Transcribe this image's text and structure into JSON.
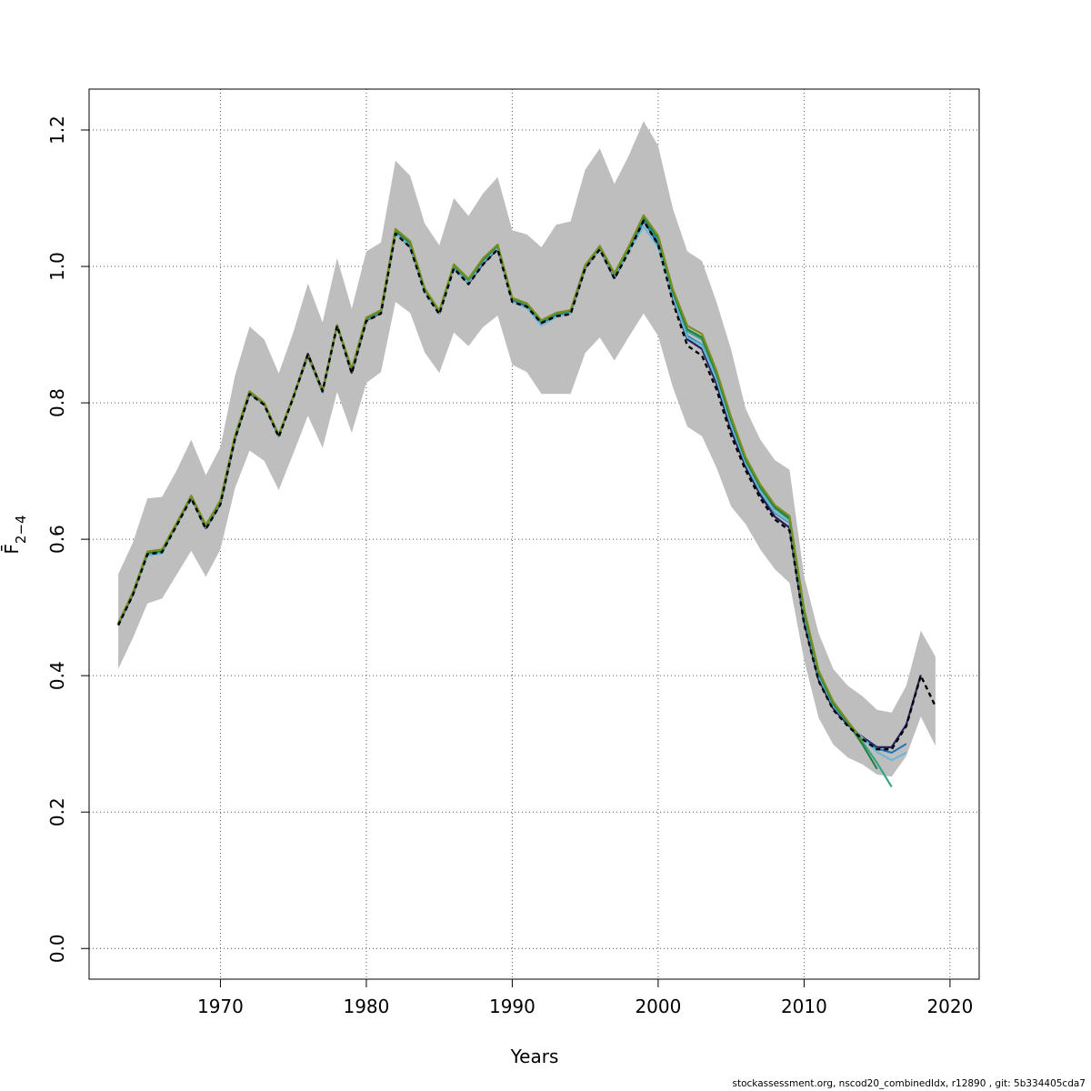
{
  "chart_data": {
    "type": "line",
    "xlabel": "Years",
    "ylabel": "F̄",
    "ylabel_sub": "2−4",
    "xlim": [
      1961,
      2022
    ],
    "ylim": [
      -0.045,
      1.26
    ],
    "x_ticks": [
      1970,
      1980,
      1990,
      2000,
      2010,
      2020
    ],
    "y_ticks": [
      0.0,
      0.2,
      0.4,
      0.6,
      0.8,
      1.0,
      1.2
    ],
    "grid": true,
    "band_color": "#bebebe",
    "band_x": [
      1963,
      1964,
      1965,
      1966,
      1967,
      1968,
      1969,
      1970,
      1971,
      1972,
      1973,
      1974,
      1975,
      1976,
      1977,
      1978,
      1979,
      1980,
      1981,
      1982,
      1983,
      1984,
      1985,
      1986,
      1987,
      1988,
      1989,
      1990,
      1991,
      1992,
      1993,
      1994,
      1995,
      1996,
      1997,
      1998,
      1999,
      2000,
      2001,
      2002,
      2003,
      2004,
      2005,
      2006,
      2007,
      2008,
      2009,
      2010,
      2011,
      2012,
      2013,
      2014,
      2015,
      2016,
      2017,
      2018,
      2019
    ],
    "band_upper": [
      0.549,
      0.595,
      0.66,
      0.662,
      0.701,
      0.746,
      0.694,
      0.735,
      0.84,
      0.912,
      0.893,
      0.843,
      0.904,
      0.975,
      0.918,
      1.012,
      0.938,
      1.022,
      1.035,
      1.155,
      1.133,
      1.063,
      1.031,
      1.1,
      1.074,
      1.107,
      1.131,
      1.053,
      1.047,
      1.028,
      1.061,
      1.066,
      1.142,
      1.173,
      1.121,
      1.163,
      1.213,
      1.177,
      1.085,
      1.022,
      1.008,
      0.948,
      0.878,
      0.791,
      0.746,
      0.716,
      0.702,
      0.546,
      0.462,
      0.41,
      0.385,
      0.37,
      0.35,
      0.346,
      0.385,
      0.466,
      0.428
    ],
    "band_lower": [
      0.41,
      0.455,
      0.506,
      0.513,
      0.548,
      0.583,
      0.545,
      0.585,
      0.675,
      0.73,
      0.715,
      0.672,
      0.726,
      0.781,
      0.734,
      0.816,
      0.756,
      0.829,
      0.845,
      0.948,
      0.932,
      0.874,
      0.844,
      0.903,
      0.883,
      0.911,
      0.928,
      0.856,
      0.845,
      0.813,
      0.813,
      0.813,
      0.873,
      0.896,
      0.862,
      0.897,
      0.931,
      0.898,
      0.823,
      0.765,
      0.751,
      0.705,
      0.648,
      0.622,
      0.585,
      0.556,
      0.536,
      0.423,
      0.338,
      0.299,
      0.28,
      0.27,
      0.255,
      0.252,
      0.282,
      0.34,
      0.297
    ],
    "series": [
      {
        "color": "#000000",
        "dash": "5,4",
        "width": 2.4,
        "x": [
          1963,
          1964,
          1965,
          1966,
          1967,
          1968,
          1969,
          1970,
          1971,
          1972,
          1973,
          1974,
          1975,
          1976,
          1977,
          1978,
          1979,
          1980,
          1981,
          1982,
          1983,
          1984,
          1985,
          1986,
          1987,
          1988,
          1989,
          1990,
          1991,
          1992,
          1993,
          1994,
          1995,
          1996,
          1997,
          1998,
          1999,
          2000,
          2001,
          2002,
          2003,
          2004,
          2005,
          2006,
          2007,
          2008,
          2009,
          2010,
          2011,
          2012,
          2013,
          2014,
          2015,
          2016,
          2017,
          2018,
          2019
        ],
        "y": [
          0.474,
          0.518,
          0.578,
          0.581,
          0.62,
          0.66,
          0.615,
          0.651,
          0.747,
          0.813,
          0.797,
          0.75,
          0.808,
          0.871,
          0.817,
          0.913,
          0.843,
          0.92,
          0.931,
          1.048,
          1.028,
          0.962,
          0.93,
          0.997,
          0.974,
          1.003,
          1.025,
          0.948,
          0.941,
          0.917,
          0.927,
          0.93,
          0.997,
          1.025,
          0.982,
          1.022,
          1.067,
          1.032,
          0.948,
          0.884,
          0.869,
          0.82,
          0.752,
          0.701,
          0.66,
          0.629,
          0.613,
          0.476,
          0.392,
          0.35,
          0.326,
          0.307,
          0.292,
          0.292,
          0.326,
          0.4,
          0.355
        ]
      },
      {
        "color": "#26215f",
        "dash": "",
        "width": 2.2,
        "x": [
          1963,
          1964,
          1965,
          1966,
          1967,
          1968,
          1969,
          1970,
          1971,
          1972,
          1973,
          1974,
          1975,
          1976,
          1977,
          1978,
          1979,
          1980,
          1981,
          1982,
          1983,
          1984,
          1985,
          1986,
          1987,
          1988,
          1989,
          1990,
          1991,
          1992,
          1993,
          1994,
          1995,
          1996,
          1997,
          1998,
          1999,
          2000,
          2001,
          2002,
          2003,
          2004,
          2005,
          2006,
          2007,
          2008,
          2009,
          2010,
          2011,
          2012,
          2013,
          2014,
          2015,
          2016,
          2017,
          2018
        ],
        "y": [
          0.475,
          0.519,
          0.579,
          0.582,
          0.621,
          0.661,
          0.616,
          0.652,
          0.748,
          0.814,
          0.798,
          0.751,
          0.809,
          0.872,
          0.818,
          0.914,
          0.844,
          0.921,
          0.932,
          1.049,
          1.029,
          0.963,
          0.931,
          0.998,
          0.975,
          1.004,
          1.026,
          0.949,
          0.942,
          0.918,
          0.928,
          0.931,
          0.998,
          1.026,
          0.983,
          1.023,
          1.068,
          1.033,
          0.954,
          0.893,
          0.879,
          0.828,
          0.76,
          0.706,
          0.665,
          0.633,
          0.617,
          0.479,
          0.394,
          0.352,
          0.328,
          0.31,
          0.295,
          0.295,
          0.328,
          0.401
        ]
      },
      {
        "color": "#1c73b8",
        "dash": "",
        "width": 2.0,
        "x": [
          1963,
          1964,
          1965,
          1966,
          1967,
          1968,
          1969,
          1970,
          1971,
          1972,
          1973,
          1974,
          1975,
          1976,
          1977,
          1978,
          1979,
          1980,
          1981,
          1982,
          1983,
          1984,
          1985,
          1986,
          1987,
          1988,
          1989,
          1990,
          1991,
          1992,
          1993,
          1994,
          1995,
          1996,
          1997,
          1998,
          1999,
          2000,
          2001,
          2002,
          2003,
          2004,
          2005,
          2006,
          2007,
          2008,
          2009,
          2010,
          2011,
          2012,
          2013,
          2014,
          2015,
          2016,
          2017
        ],
        "y": [
          0.476,
          0.52,
          0.579,
          0.583,
          0.622,
          0.662,
          0.618,
          0.653,
          0.749,
          0.815,
          0.799,
          0.752,
          0.81,
          0.87,
          0.818,
          0.914,
          0.845,
          0.922,
          0.933,
          1.051,
          1.032,
          0.964,
          0.932,
          1.0,
          0.978,
          1.008,
          1.028,
          0.951,
          0.943,
          0.918,
          0.929,
          0.933,
          1.0,
          1.028,
          0.986,
          1.025,
          1.066,
          1.036,
          0.958,
          0.898,
          0.885,
          0.834,
          0.766,
          0.711,
          0.67,
          0.639,
          0.624,
          0.487,
          0.398,
          0.355,
          0.33,
          0.308,
          0.293,
          0.287,
          0.3
        ]
      },
      {
        "color": "#6ab8d6",
        "dash": "",
        "width": 2.0,
        "x": [
          1963,
          1964,
          1965,
          1966,
          1967,
          1968,
          1969,
          1970,
          1971,
          1972,
          1973,
          1974,
          1975,
          1976,
          1977,
          1978,
          1979,
          1980,
          1981,
          1982,
          1983,
          1984,
          1985,
          1986,
          1987,
          1988,
          1989,
          1990,
          1991,
          1992,
          1993,
          1994,
          1995,
          1996,
          1997,
          1998,
          1999,
          2000,
          2001,
          2002,
          2003,
          2004,
          2005,
          2006,
          2007,
          2008,
          2009,
          2010,
          2011,
          2012,
          2013,
          2014,
          2015,
          2016,
          2017
        ],
        "y": [
          0.476,
          0.521,
          0.576,
          0.579,
          0.621,
          0.66,
          0.617,
          0.654,
          0.749,
          0.815,
          0.798,
          0.751,
          0.808,
          0.868,
          0.815,
          0.912,
          0.846,
          0.922,
          0.933,
          1.048,
          1.03,
          0.962,
          0.931,
          0.996,
          0.976,
          1.006,
          1.027,
          0.948,
          0.939,
          0.913,
          0.926,
          0.931,
          0.999,
          1.026,
          0.985,
          1.022,
          1.059,
          1.028,
          0.956,
          0.896,
          0.884,
          0.834,
          0.767,
          0.711,
          0.67,
          0.64,
          0.625,
          0.488,
          0.399,
          0.356,
          0.331,
          0.309,
          0.288,
          0.276,
          0.287
        ]
      },
      {
        "color": "#3aa386",
        "dash": "",
        "width": 2.2,
        "x": [
          1963,
          1964,
          1965,
          1966,
          1967,
          1968,
          1969,
          1970,
          1971,
          1972,
          1973,
          1974,
          1975,
          1976,
          1977,
          1978,
          1979,
          1980,
          1981,
          1982,
          1983,
          1984,
          1985,
          1986,
          1987,
          1988,
          1989,
          1990,
          1991,
          1992,
          1993,
          1994,
          1995,
          1996,
          1997,
          1998,
          1999,
          2000,
          2001,
          2002,
          2003,
          2004,
          2005,
          2006,
          2007,
          2008,
          2009,
          2010,
          2011,
          2012,
          2013,
          2014,
          2015,
          2016
        ],
        "y": [
          0.476,
          0.521,
          0.579,
          0.582,
          0.622,
          0.662,
          0.619,
          0.655,
          0.75,
          0.816,
          0.799,
          0.752,
          0.809,
          0.869,
          0.816,
          0.913,
          0.848,
          0.923,
          0.934,
          1.052,
          1.034,
          0.966,
          0.933,
          1.001,
          0.98,
          1.009,
          1.03,
          0.952,
          0.944,
          0.919,
          0.93,
          0.934,
          1.001,
          1.029,
          0.988,
          1.027,
          1.071,
          1.04,
          0.962,
          0.905,
          0.893,
          0.841,
          0.773,
          0.715,
          0.675,
          0.645,
          0.629,
          0.492,
          0.403,
          0.358,
          0.332,
          0.303,
          0.272,
          0.237
        ]
      },
      {
        "color": "#7a8f1e",
        "dash": "",
        "width": 2.2,
        "x": [
          1963,
          1964,
          1965,
          1966,
          1967,
          1968,
          1969,
          1970,
          1971,
          1972,
          1973,
          1974,
          1975,
          1976,
          1977,
          1978,
          1979,
          1980,
          1981,
          1982,
          1983,
          1984,
          1985,
          1986,
          1987,
          1988,
          1989,
          1990,
          1991,
          1992,
          1993,
          1994,
          1995,
          1996,
          1997,
          1998,
          1999,
          2000,
          2001,
          2002,
          2003,
          2004,
          2005,
          2006,
          2007,
          2008,
          2009,
          2010,
          2011,
          2012,
          2013,
          2014
        ],
        "y": [
          0.477,
          0.522,
          0.582,
          0.585,
          0.624,
          0.664,
          0.621,
          0.657,
          0.752,
          0.817,
          0.8,
          0.753,
          0.81,
          0.87,
          0.817,
          0.914,
          0.85,
          0.925,
          0.936,
          1.055,
          1.037,
          0.968,
          0.935,
          1.003,
          0.982,
          1.012,
          1.032,
          0.954,
          0.946,
          0.921,
          0.932,
          0.936,
          1.002,
          1.03,
          0.99,
          1.03,
          1.075,
          1.045,
          0.967,
          0.913,
          0.901,
          0.847,
          0.779,
          0.72,
          0.68,
          0.65,
          0.634,
          0.498,
          0.407,
          0.362,
          0.333,
          0.305
        ]
      },
      {
        "color": "#1f7f3e",
        "dash": "",
        "width": 2.0,
        "x": [
          1963,
          1964,
          1965,
          1966,
          1967,
          1968,
          1969,
          1970,
          1971,
          1972,
          1973,
          1974,
          1975,
          1976,
          1977,
          1978,
          1979,
          1980,
          1981,
          1982,
          1983,
          1984,
          1985,
          1986,
          1987,
          1988,
          1989,
          1990,
          1991,
          1992,
          1993,
          1994,
          1995,
          1996,
          1997,
          1998,
          1999,
          2000,
          2001,
          2002,
          2003,
          2004,
          2005,
          2006,
          2007,
          2008,
          2009,
          2010,
          2011,
          2012,
          2013,
          2014,
          2015
        ],
        "y": [
          0.476,
          0.521,
          0.58,
          0.583,
          0.623,
          0.663,
          0.62,
          0.656,
          0.751,
          0.816,
          0.799,
          0.752,
          0.809,
          0.869,
          0.816,
          0.913,
          0.849,
          0.924,
          0.935,
          1.053,
          1.035,
          0.967,
          0.934,
          1.002,
          0.981,
          1.01,
          1.031,
          0.953,
          0.945,
          0.92,
          0.931,
          0.935,
          1.001,
          1.029,
          0.989,
          1.028,
          1.072,
          1.042,
          0.964,
          0.908,
          0.896,
          0.843,
          0.775,
          0.717,
          0.677,
          0.647,
          0.631,
          0.494,
          0.404,
          0.359,
          0.331,
          0.299,
          0.263
        ]
      }
    ]
  },
  "footer": {
    "text": "stockassessment.org, nscod20_combinedIdx, r12890 , git: 5b334405cda7"
  }
}
